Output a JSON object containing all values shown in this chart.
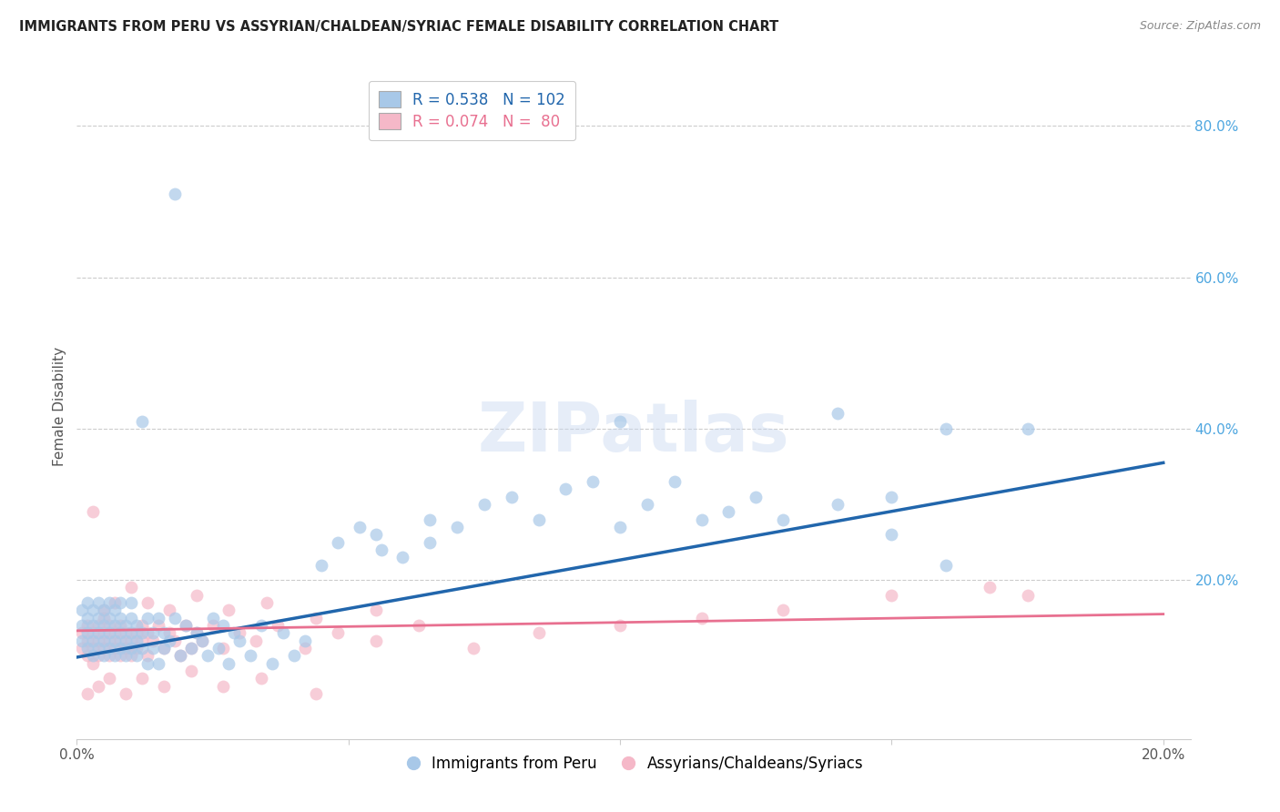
{
  "title": "IMMIGRANTS FROM PERU VS ASSYRIAN/CHALDEAN/SYRIAC FEMALE DISABILITY CORRELATION CHART",
  "source": "Source: ZipAtlas.com",
  "ylabel": "Female Disability",
  "xlim": [
    0.0,
    0.205
  ],
  "ylim": [
    -0.01,
    0.87
  ],
  "xticks": [
    0.0,
    0.05,
    0.1,
    0.15,
    0.2
  ],
  "xtick_labels": [
    "0.0%",
    "",
    "",
    "",
    "20.0%"
  ],
  "ytick_labels_right": [
    "80.0%",
    "60.0%",
    "40.0%",
    "20.0%"
  ],
  "ytick_positions_right": [
    0.8,
    0.6,
    0.4,
    0.2
  ],
  "blue_R": 0.538,
  "blue_N": 102,
  "pink_R": 0.074,
  "pink_N": 80,
  "blue_color": "#a8c8e8",
  "pink_color": "#f5b8c8",
  "blue_line_color": "#2166ac",
  "pink_line_color": "#e87090",
  "legend_blue_label": "Immigrants from Peru",
  "legend_pink_label": "Assyrians/Chaldeans/Syriacs",
  "background_color": "#ffffff",
  "grid_color": "#cccccc",
  "blue_scatter_x": [
    0.001,
    0.001,
    0.001,
    0.002,
    0.002,
    0.002,
    0.002,
    0.003,
    0.003,
    0.003,
    0.003,
    0.004,
    0.004,
    0.004,
    0.004,
    0.005,
    0.005,
    0.005,
    0.005,
    0.006,
    0.006,
    0.006,
    0.006,
    0.007,
    0.007,
    0.007,
    0.007,
    0.008,
    0.008,
    0.008,
    0.008,
    0.009,
    0.009,
    0.009,
    0.01,
    0.01,
    0.01,
    0.01,
    0.011,
    0.011,
    0.011,
    0.012,
    0.012,
    0.013,
    0.013,
    0.014,
    0.014,
    0.015,
    0.015,
    0.016,
    0.016,
    0.017,
    0.018,
    0.019,
    0.02,
    0.021,
    0.022,
    0.023,
    0.024,
    0.025,
    0.026,
    0.027,
    0.028,
    0.029,
    0.03,
    0.032,
    0.034,
    0.036,
    0.038,
    0.04,
    0.042,
    0.045,
    0.048,
    0.052,
    0.056,
    0.06,
    0.065,
    0.07,
    0.075,
    0.08,
    0.085,
    0.09,
    0.095,
    0.1,
    0.105,
    0.11,
    0.115,
    0.12,
    0.125,
    0.13,
    0.14,
    0.15,
    0.16,
    0.055,
    0.065,
    0.1,
    0.14,
    0.15,
    0.16,
    0.175,
    0.012,
    0.018
  ],
  "blue_scatter_y": [
    0.14,
    0.12,
    0.16,
    0.13,
    0.11,
    0.15,
    0.17,
    0.12,
    0.14,
    0.1,
    0.16,
    0.13,
    0.11,
    0.15,
    0.17,
    0.12,
    0.14,
    0.1,
    0.16,
    0.13,
    0.11,
    0.15,
    0.17,
    0.12,
    0.14,
    0.1,
    0.16,
    0.13,
    0.11,
    0.15,
    0.17,
    0.12,
    0.14,
    0.1,
    0.13,
    0.11,
    0.15,
    0.17,
    0.12,
    0.14,
    0.1,
    0.13,
    0.11,
    0.15,
    0.09,
    0.13,
    0.11,
    0.15,
    0.09,
    0.13,
    0.11,
    0.12,
    0.15,
    0.1,
    0.14,
    0.11,
    0.13,
    0.12,
    0.1,
    0.15,
    0.11,
    0.14,
    0.09,
    0.13,
    0.12,
    0.1,
    0.14,
    0.09,
    0.13,
    0.1,
    0.12,
    0.22,
    0.25,
    0.27,
    0.24,
    0.23,
    0.28,
    0.27,
    0.3,
    0.31,
    0.28,
    0.32,
    0.33,
    0.27,
    0.3,
    0.33,
    0.28,
    0.29,
    0.31,
    0.28,
    0.3,
    0.31,
    0.4,
    0.26,
    0.25,
    0.41,
    0.42,
    0.26,
    0.22,
    0.4,
    0.41,
    0.71
  ],
  "pink_scatter_x": [
    0.001,
    0.001,
    0.002,
    0.002,
    0.002,
    0.003,
    0.003,
    0.003,
    0.004,
    0.004,
    0.004,
    0.005,
    0.005,
    0.005,
    0.006,
    0.006,
    0.006,
    0.007,
    0.007,
    0.008,
    0.008,
    0.008,
    0.009,
    0.009,
    0.01,
    0.01,
    0.011,
    0.011,
    0.012,
    0.012,
    0.013,
    0.013,
    0.014,
    0.015,
    0.016,
    0.017,
    0.018,
    0.019,
    0.02,
    0.021,
    0.022,
    0.023,
    0.025,
    0.027,
    0.03,
    0.033,
    0.037,
    0.042,
    0.048,
    0.055,
    0.063,
    0.073,
    0.085,
    0.1,
    0.115,
    0.13,
    0.15,
    0.168,
    0.175,
    0.003,
    0.005,
    0.007,
    0.01,
    0.013,
    0.017,
    0.022,
    0.028,
    0.035,
    0.044,
    0.055,
    0.002,
    0.004,
    0.006,
    0.009,
    0.012,
    0.016,
    0.021,
    0.027,
    0.034,
    0.044
  ],
  "pink_scatter_y": [
    0.13,
    0.11,
    0.12,
    0.1,
    0.14,
    0.11,
    0.13,
    0.09,
    0.14,
    0.12,
    0.1,
    0.13,
    0.11,
    0.15,
    0.12,
    0.1,
    0.14,
    0.11,
    0.13,
    0.12,
    0.1,
    0.14,
    0.11,
    0.13,
    0.12,
    0.1,
    0.13,
    0.11,
    0.14,
    0.12,
    0.1,
    0.13,
    0.12,
    0.14,
    0.11,
    0.13,
    0.12,
    0.1,
    0.14,
    0.11,
    0.13,
    0.12,
    0.14,
    0.11,
    0.13,
    0.12,
    0.14,
    0.11,
    0.13,
    0.12,
    0.14,
    0.11,
    0.13,
    0.14,
    0.15,
    0.16,
    0.18,
    0.19,
    0.18,
    0.29,
    0.16,
    0.17,
    0.19,
    0.17,
    0.16,
    0.18,
    0.16,
    0.17,
    0.15,
    0.16,
    0.05,
    0.06,
    0.07,
    0.05,
    0.07,
    0.06,
    0.08,
    0.06,
    0.07,
    0.05
  ],
  "blue_line_x": [
    0.0,
    0.2
  ],
  "blue_line_y": [
    0.098,
    0.355
  ],
  "pink_line_x": [
    0.0,
    0.2
  ],
  "pink_line_y": [
    0.133,
    0.155
  ]
}
